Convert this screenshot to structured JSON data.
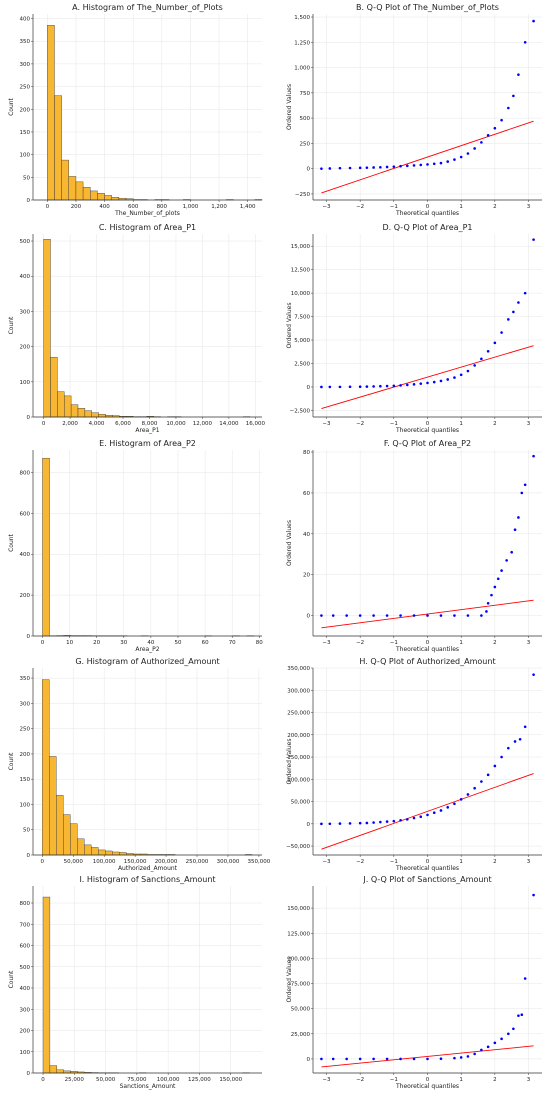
{
  "chart_data": [
    {
      "type": "bar",
      "title": "A. Histogram of The_Number_of_Plots",
      "xlabel": "The_Number_of_plots",
      "ylabel": "Count",
      "xlim": [
        -100,
        1500
      ],
      "ylim": [
        0,
        410
      ],
      "xticks": [
        0,
        200,
        400,
        600,
        800,
        1000,
        1200,
        1400
      ],
      "xtick_labels": [
        "0",
        "200",
        "400",
        "600",
        "800",
        "1,000",
        "1,200",
        "1,400"
      ],
      "yticks": [
        0,
        50,
        100,
        150,
        200,
        250,
        300,
        350,
        400
      ],
      "ytick_labels": [
        "0",
        "50",
        "100",
        "150",
        "200",
        "250",
        "300",
        "350",
        "400"
      ],
      "bin_width": 50,
      "bin_start": 0,
      "values": [
        385,
        230,
        88,
        52,
        40,
        28,
        20,
        15,
        10,
        6,
        4,
        3,
        1,
        1,
        0,
        1,
        1,
        0,
        0,
        1,
        0,
        0,
        0,
        0,
        0,
        1,
        0,
        0,
        0,
        1
      ],
      "color": "#f7b733",
      "grid": true
    },
    {
      "type": "scatter",
      "title": "B. Q-Q Plot of The_Number_of_Plots",
      "xlabel": "Theoretical quantiles",
      "ylabel": "Ordered Values",
      "xlim": [
        -3.4,
        3.4
      ],
      "ylim": [
        -310,
        1530
      ],
      "xticks": [
        -3,
        -2,
        -1,
        0,
        1,
        2,
        3
      ],
      "xtick_labels": [
        "−3",
        "−2",
        "−1",
        "0",
        "1",
        "2",
        "3"
      ],
      "yticks": [
        -250,
        0,
        250,
        500,
        750,
        1000,
        1250,
        1500
      ],
      "ytick_labels": [
        "−250",
        "0",
        "250",
        "500",
        "750",
        "1,000",
        "1,250",
        "1,500"
      ],
      "points": [
        [
          -3.15,
          0
        ],
        [
          -2.9,
          2
        ],
        [
          -2.6,
          5
        ],
        [
          -2.3,
          6
        ],
        [
          -2.0,
          8
        ],
        [
          -1.8,
          10
        ],
        [
          -1.6,
          12
        ],
        [
          -1.4,
          14
        ],
        [
          -1.2,
          17
        ],
        [
          -1.0,
          20
        ],
        [
          -0.8,
          24
        ],
        [
          -0.6,
          28
        ],
        [
          -0.4,
          32
        ],
        [
          -0.2,
          37
        ],
        [
          0.0,
          42
        ],
        [
          0.2,
          48
        ],
        [
          0.4,
          55
        ],
        [
          0.6,
          70
        ],
        [
          0.8,
          90
        ],
        [
          1.0,
          115
        ],
        [
          1.2,
          150
        ],
        [
          1.4,
          200
        ],
        [
          1.6,
          260
        ],
        [
          1.8,
          330
        ],
        [
          2.0,
          400
        ],
        [
          2.2,
          480
        ],
        [
          2.4,
          600
        ],
        [
          2.55,
          720
        ],
        [
          2.7,
          930
        ],
        [
          2.9,
          1250
        ],
        [
          3.15,
          1460
        ]
      ],
      "fit_line": [
        [
          -3.15,
          -240
        ],
        [
          3.15,
          470
        ]
      ],
      "point_color": "#0000ff",
      "line_color": "#ff0000",
      "grid": true
    },
    {
      "type": "bar",
      "title": "C. Histogram of Area_P1",
      "xlabel": "Area_P1",
      "ylabel": "Count",
      "xlim": [
        -800,
        16500
      ],
      "ylim": [
        0,
        520
      ],
      "xticks": [
        0,
        2000,
        4000,
        6000,
        8000,
        10000,
        12000,
        14000,
        16000
      ],
      "xtick_labels": [
        "0",
        "2,000",
        "4,000",
        "6,000",
        "8,000",
        "10,000",
        "12,000",
        "14,000",
        "16,000"
      ],
      "yticks": [
        0,
        100,
        200,
        300,
        400,
        500
      ],
      "ytick_labels": [
        "0",
        "100",
        "200",
        "300",
        "400",
        "500"
      ],
      "bin_width": 520,
      "bin_start": 0,
      "values": [
        505,
        170,
        72,
        60,
        35,
        25,
        18,
        12,
        8,
        5,
        4,
        2,
        2,
        1,
        1,
        2,
        1,
        0,
        1,
        1,
        0,
        0,
        0,
        0,
        0,
        0,
        0,
        0,
        0,
        1
      ],
      "color": "#f7b733",
      "grid": true
    },
    {
      "type": "scatter",
      "title": "D. Q-Q Plot of Area_P1",
      "xlabel": "Theoretical quantiles",
      "ylabel": "Ordered Values",
      "xlim": [
        -3.4,
        3.4
      ],
      "ylim": [
        -3200,
        16300
      ],
      "xticks": [
        -3,
        -2,
        -1,
        0,
        1,
        2,
        3
      ],
      "xtick_labels": [
        "−3",
        "−2",
        "−1",
        "0",
        "1",
        "2",
        "3"
      ],
      "yticks": [
        -2500,
        0,
        2500,
        5000,
        7500,
        10000,
        12500,
        15000
      ],
      "ytick_labels": [
        "−2,500",
        "0",
        "2,500",
        "5,000",
        "7,500",
        "10,000",
        "12,500",
        "15,000"
      ],
      "points": [
        [
          -3.15,
          0
        ],
        [
          -2.9,
          5
        ],
        [
          -2.6,
          10
        ],
        [
          -2.3,
          20
        ],
        [
          -2.0,
          30
        ],
        [
          -1.8,
          40
        ],
        [
          -1.6,
          60
        ],
        [
          -1.4,
          80
        ],
        [
          -1.2,
          100
        ],
        [
          -1.0,
          130
        ],
        [
          -0.8,
          170
        ],
        [
          -0.6,
          220
        ],
        [
          -0.4,
          280
        ],
        [
          -0.2,
          350
        ],
        [
          0.0,
          430
        ],
        [
          0.2,
          520
        ],
        [
          0.4,
          640
        ],
        [
          0.6,
          800
        ],
        [
          0.8,
          1000
        ],
        [
          1.0,
          1300
        ],
        [
          1.2,
          1700
        ],
        [
          1.4,
          2300
        ],
        [
          1.6,
          3000
        ],
        [
          1.8,
          3800
        ],
        [
          2.0,
          4700
        ],
        [
          2.2,
          5800
        ],
        [
          2.4,
          7200
        ],
        [
          2.55,
          8000
        ],
        [
          2.7,
          9000
        ],
        [
          2.9,
          10000
        ],
        [
          3.15,
          15700
        ]
      ],
      "fit_line": [
        [
          -3.15,
          -2300
        ],
        [
          3.15,
          4400
        ]
      ],
      "point_color": "#0000ff",
      "line_color": "#ff0000",
      "grid": true
    },
    {
      "type": "bar",
      "title": "E. Histogram of Area_P2",
      "xlabel": "Area_P2",
      "ylabel": "Count",
      "xlim": [
        -3.5,
        81
      ],
      "ylim": [
        0,
        910
      ],
      "xticks": [
        0,
        10,
        20,
        30,
        40,
        50,
        60,
        70,
        80
      ],
      "xtick_labels": [
        "0",
        "10",
        "20",
        "30",
        "40",
        "50",
        "60",
        "70",
        "80"
      ],
      "yticks": [
        0,
        200,
        400,
        600,
        800
      ],
      "ytick_labels": [
        "0",
        "200",
        "400",
        "600",
        "800"
      ],
      "bin_width": 2.6,
      "bin_start": 0,
      "values": [
        870,
        1,
        2,
        3,
        2,
        2,
        2,
        1,
        1,
        1,
        1,
        1,
        0,
        0,
        1,
        0,
        0,
        0,
        0,
        0,
        0,
        0,
        0,
        1,
        0,
        0,
        0,
        1,
        0,
        1
      ],
      "color": "#f7b733",
      "grid": true
    },
    {
      "type": "scatter",
      "title": "F. Q-Q Plot of Area_P2",
      "xlabel": "Theoretical quantiles",
      "ylabel": "Ordered Values",
      "xlim": [
        -3.4,
        3.4
      ],
      "ylim": [
        -10,
        81
      ],
      "xticks": [
        -3,
        -2,
        -1,
        0,
        1,
        2,
        3
      ],
      "xtick_labels": [
        "−3",
        "−2",
        "−1",
        "0",
        "1",
        "2",
        "3"
      ],
      "yticks": [
        0,
        20,
        40,
        60,
        80
      ],
      "ytick_labels": [
        "0",
        "20",
        "40",
        "60",
        "80"
      ],
      "points": [
        [
          -3.15,
          0
        ],
        [
          -2.8,
          0
        ],
        [
          -2.4,
          0
        ],
        [
          -2.0,
          0
        ],
        [
          -1.6,
          0
        ],
        [
          -1.2,
          0
        ],
        [
          -0.8,
          0
        ],
        [
          -0.4,
          0
        ],
        [
          0.0,
          0
        ],
        [
          0.4,
          0
        ],
        [
          0.8,
          0
        ],
        [
          1.2,
          0
        ],
        [
          1.6,
          0
        ],
        [
          1.75,
          2
        ],
        [
          1.8,
          6
        ],
        [
          1.9,
          10
        ],
        [
          2.0,
          14
        ],
        [
          2.1,
          18
        ],
        [
          2.2,
          22
        ],
        [
          2.35,
          27
        ],
        [
          2.5,
          31
        ],
        [
          2.6,
          42
        ],
        [
          2.7,
          48
        ],
        [
          2.8,
          60
        ],
        [
          2.9,
          64
        ],
        [
          3.15,
          78
        ]
      ],
      "fit_line": [
        [
          -3.15,
          -6
        ],
        [
          3.15,
          7.5
        ]
      ],
      "point_color": "#0000ff",
      "line_color": "#ff0000",
      "grid": true
    },
    {
      "type": "bar",
      "title": "G. Histogram of Authorized_Amount",
      "xlabel": "Authorized_Amount",
      "ylabel": "Count",
      "xlim": [
        -15000,
        355000
      ],
      "ylim": [
        0,
        370
      ],
      "xticks": [
        0,
        50000,
        100000,
        150000,
        200000,
        250000,
        300000,
        350000
      ],
      "xtick_labels": [
        "0",
        "50,000",
        "100,000",
        "150,000",
        "200,000",
        "250,000",
        "300,000",
        "350,000"
      ],
      "yticks": [
        0,
        50,
        100,
        150,
        200,
        250,
        300,
        350
      ],
      "ytick_labels": [
        "0",
        "50",
        "100",
        "150",
        "200",
        "250",
        "300",
        "350"
      ],
      "bin_width": 11300,
      "bin_start": 0,
      "values": [
        347,
        195,
        118,
        80,
        62,
        32,
        20,
        15,
        10,
        8,
        6,
        5,
        3,
        2,
        2,
        1,
        1,
        1,
        1,
        0,
        0,
        0,
        0,
        0,
        0,
        0,
        0,
        0,
        0,
        1
      ],
      "color": "#f7b733",
      "grid": true
    },
    {
      "type": "scatter",
      "title": "H. Q-Q Plot of Authorized_Amount",
      "xlabel": "Theoretical quantiles",
      "ylabel": "Ordered Values",
      "xlim": [
        -3.4,
        3.4
      ],
      "ylim": [
        -70000,
        350000
      ],
      "xticks": [
        -3,
        -2,
        -1,
        0,
        1,
        2,
        3
      ],
      "xtick_labels": [
        "−3",
        "−2",
        "−1",
        "0",
        "1",
        "2",
        "3"
      ],
      "yticks": [
        -50000,
        0,
        50000,
        100000,
        150000,
        200000,
        250000,
        300000,
        350000
      ],
      "ytick_labels": [
        "−50,000",
        "0",
        "50,000",
        "100,000",
        "150,000",
        "200,000",
        "250,000",
        "300,000",
        "350,000"
      ],
      "points": [
        [
          -3.15,
          0
        ],
        [
          -2.9,
          200
        ],
        [
          -2.6,
          500
        ],
        [
          -2.3,
          1000
        ],
        [
          -2.0,
          1500
        ],
        [
          -1.8,
          2000
        ],
        [
          -1.6,
          3000
        ],
        [
          -1.4,
          4000
        ],
        [
          -1.2,
          5000
        ],
        [
          -1.0,
          6000
        ],
        [
          -0.8,
          8000
        ],
        [
          -0.6,
          10000
        ],
        [
          -0.4,
          13000
        ],
        [
          -0.2,
          16000
        ],
        [
          0.0,
          20000
        ],
        [
          0.2,
          25000
        ],
        [
          0.4,
          30000
        ],
        [
          0.6,
          37000
        ],
        [
          0.8,
          45000
        ],
        [
          1.0,
          55000
        ],
        [
          1.2,
          66000
        ],
        [
          1.4,
          80000
        ],
        [
          1.6,
          95000
        ],
        [
          1.8,
          110000
        ],
        [
          2.0,
          130000
        ],
        [
          2.2,
          150000
        ],
        [
          2.4,
          170000
        ],
        [
          2.6,
          185000
        ],
        [
          2.75,
          190000
        ],
        [
          2.9,
          218000
        ],
        [
          3.15,
          335000
        ]
      ],
      "fit_line": [
        [
          -3.15,
          -57000
        ],
        [
          3.15,
          113000
        ]
      ],
      "point_color": "#0000ff",
      "line_color": "#ff0000",
      "grid": true
    },
    {
      "type": "bar",
      "title": "I. Histogram of Sanctions_Amount",
      "xlabel": "Sanctions_Amount",
      "ylabel": "Count",
      "xlim": [
        -8000,
        175000
      ],
      "ylim": [
        0,
        880
      ],
      "xticks": [
        0,
        25000,
        50000,
        75000,
        100000,
        125000,
        150000
      ],
      "xtick_labels": [
        "0",
        "25,000",
        "50,000",
        "75,000",
        "100,000",
        "125,000",
        "150,000"
      ],
      "yticks": [
        0,
        100,
        200,
        300,
        400,
        500,
        600,
        700,
        800
      ],
      "ytick_labels": [
        "0",
        "100",
        "200",
        "300",
        "400",
        "500",
        "600",
        "700",
        "800"
      ],
      "bin_width": 5500,
      "bin_start": 0,
      "values": [
        828,
        35,
        15,
        10,
        8,
        5,
        3,
        2,
        1,
        1,
        1,
        0,
        0,
        0,
        1,
        0,
        0,
        0,
        0,
        0,
        0,
        0,
        0,
        0,
        0,
        0,
        0,
        0,
        0,
        1
      ],
      "color": "#f7b733",
      "grid": true
    },
    {
      "type": "scatter",
      "title": "J. Q-Q Plot of Sanctions_Amount",
      "xlabel": "Theoretical quantiles",
      "ylabel": "Ordered Values",
      "xlim": [
        -3.4,
        3.4
      ],
      "ylim": [
        -14000,
        172000
      ],
      "xticks": [
        -3,
        -2,
        -1,
        0,
        1,
        2,
        3
      ],
      "xtick_labels": [
        "−3",
        "−2",
        "−1",
        "0",
        "1",
        "2",
        "3"
      ],
      "yticks": [
        0,
        25000,
        50000,
        75000,
        100000,
        125000,
        150000
      ],
      "ytick_labels": [
        "0",
        "25,000",
        "50,000",
        "75,000",
        "100,000",
        "125,000",
        "150,000"
      ],
      "points": [
        [
          -3.15,
          0
        ],
        [
          -2.8,
          0
        ],
        [
          -2.4,
          0
        ],
        [
          -2.0,
          0
        ],
        [
          -1.6,
          0
        ],
        [
          -1.2,
          0
        ],
        [
          -0.8,
          0
        ],
        [
          -0.4,
          0
        ],
        [
          0.0,
          0
        ],
        [
          0.4,
          200
        ],
        [
          0.8,
          800
        ],
        [
          1.0,
          1500
        ],
        [
          1.2,
          2500
        ],
        [
          1.4,
          5000
        ],
        [
          1.6,
          9000
        ],
        [
          1.8,
          12000
        ],
        [
          2.0,
          16000
        ],
        [
          2.2,
          20000
        ],
        [
          2.4,
          25000
        ],
        [
          2.55,
          30000
        ],
        [
          2.7,
          43000
        ],
        [
          2.8,
          44000
        ],
        [
          2.9,
          80000
        ],
        [
          3.15,
          163000
        ]
      ],
      "fit_line": [
        [
          -3.15,
          -8000
        ],
        [
          3.15,
          13000
        ]
      ],
      "point_color": "#0000ff",
      "line_color": "#ff0000",
      "grid": true
    }
  ]
}
